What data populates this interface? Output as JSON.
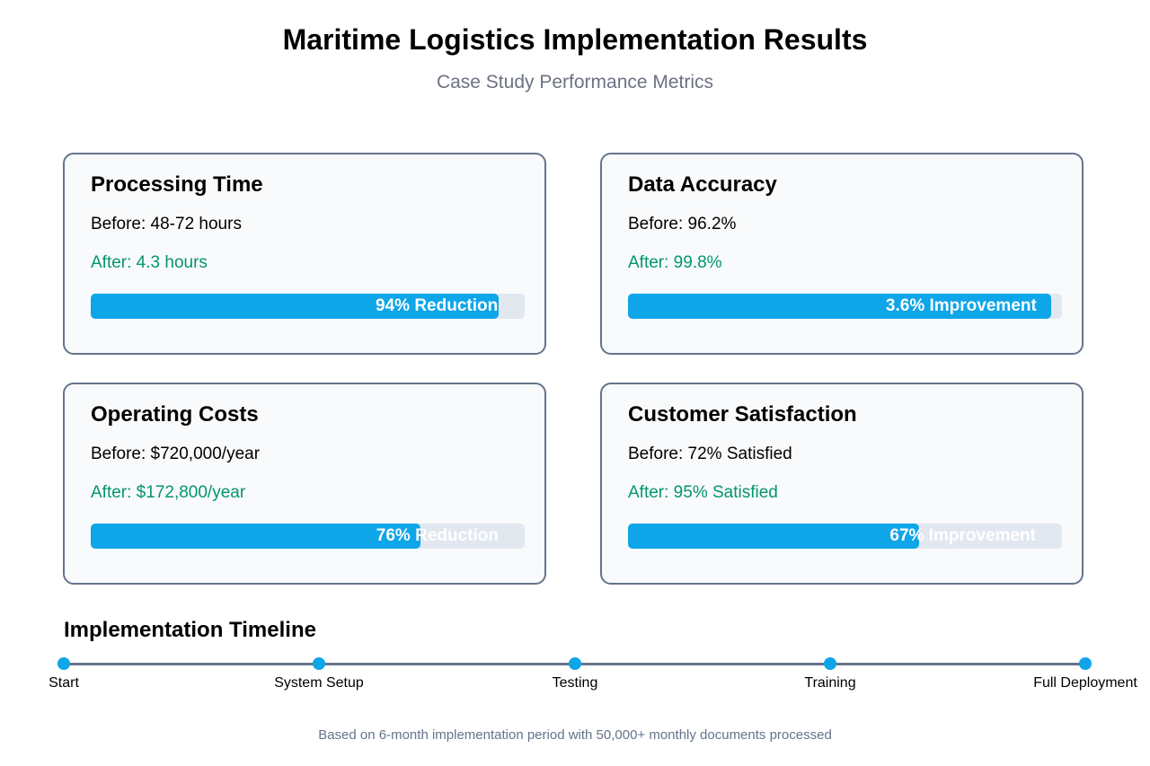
{
  "header": {
    "title": "Maritime Logistics Implementation Results",
    "subtitle": "Case Study Performance Metrics"
  },
  "metrics": [
    {
      "title": "Processing Time",
      "before": "Before: 48-72 hours",
      "after": "After: 4.3 hours",
      "bar_label": "94% Reduction",
      "bar_fill_percent": 94
    },
    {
      "title": "Data Accuracy",
      "before": "Before: 96.2%",
      "after": "After: 99.8%",
      "bar_label": "3.6% Improvement",
      "bar_fill_percent": 97.5
    },
    {
      "title": "Operating Costs",
      "before": "Before: $720,000/year",
      "after": "After: $172,800/year",
      "bar_label": "76% Reduction",
      "bar_fill_percent": 76
    },
    {
      "title": "Customer Satisfaction",
      "before": "Before: 72% Satisfied",
      "after": "After: 95% Satisfied",
      "bar_label": "67% Improvement",
      "bar_fill_percent": 67
    }
  ],
  "timeline": {
    "title": "Implementation Timeline",
    "milestones": [
      "Start",
      "System Setup",
      "Testing",
      "Training",
      "Full Deployment"
    ]
  },
  "footer": {
    "note": "Based on 6-month implementation period with 50,000+ monthly documents processed"
  },
  "colors": {
    "bar_fill": "#0ea5e9",
    "bar_track": "#e2e8f0",
    "after_text": "#059669",
    "card_border": "#64748b"
  }
}
